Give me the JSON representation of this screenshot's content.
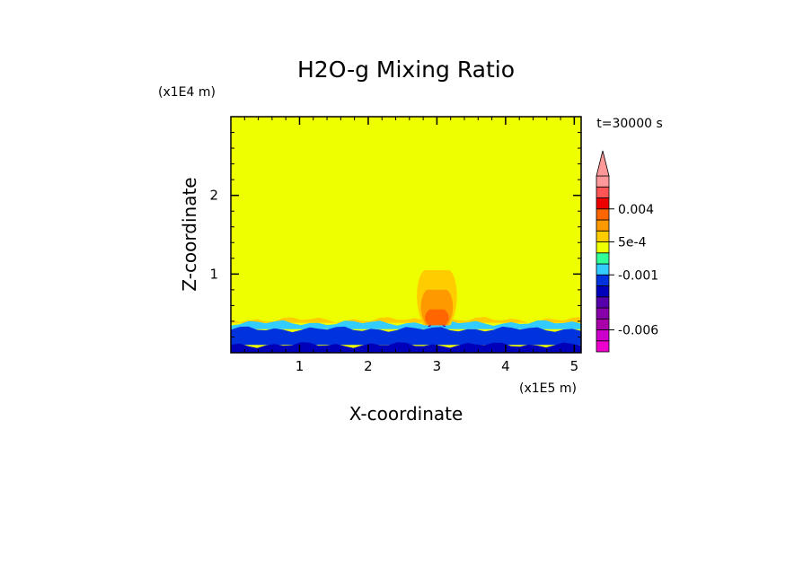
{
  "chart_data": {
    "type": "heatmap",
    "title": "H2O-g Mixing Ratio",
    "xlabel": "X-coordinate",
    "ylabel": "Z-coordinate",
    "x_unit": "(x1E5 m)",
    "y_unit": "(x1E4 m)",
    "time_label": "t=30000 s",
    "xlim": [
      0,
      5.1
    ],
    "ylim": [
      0,
      3.0
    ],
    "x_ticks": [
      1,
      2,
      3,
      4,
      5
    ],
    "y_ticks": [
      1,
      2
    ],
    "x_tick_labels": [
      "1",
      "2",
      "3",
      "4",
      "5"
    ],
    "y_tick_labels": [
      "1",
      "2"
    ],
    "background_value": 0,
    "colorbar": {
      "levels": [
        -0.008,
        -0.007,
        -0.006,
        -0.005,
        -0.004,
        -0.003,
        -0.002,
        -0.001,
        -0.0005,
        0,
        0.0005,
        0.001,
        0.002,
        0.004,
        0.006,
        0.008
      ],
      "colors": [
        "#ee00cc",
        "#cc00cc",
        "#aa00aa",
        "#8800aa",
        "#5500aa",
        "#0000bb",
        "#0033dd",
        "#33ccff",
        "#33ff99",
        "#eeff00",
        "#ffcc00",
        "#ff9900",
        "#ff6600",
        "#ee0000",
        "#ff5555",
        "#ff9999"
      ],
      "extend_color": "#ff9999",
      "labels": [
        "0.004",
        "5e-4",
        "-0.001",
        "-0.006"
      ],
      "label_values": [
        0.004,
        0.0005,
        -0.001,
        -0.006
      ]
    },
    "features": [
      {
        "type": "layer",
        "x": [
          0,
          5.1
        ],
        "z": [
          0.38,
          0.42
        ],
        "value": 0.0008
      },
      {
        "type": "layer",
        "x": [
          0,
          5.1
        ],
        "z": [
          0.3,
          0.38
        ],
        "value": -0.0008
      },
      {
        "type": "layer",
        "x": [
          0,
          5.1
        ],
        "z": [
          0.1,
          0.3
        ],
        "value": -0.0015
      },
      {
        "type": "layer",
        "x": [
          0,
          5.1
        ],
        "z": [
          0.0,
          0.1
        ],
        "value": -0.003
      },
      {
        "type": "plume",
        "x_center": 3.0,
        "z_top": 1.05,
        "value": 0.0007
      },
      {
        "type": "plume",
        "x_center": 3.0,
        "z_top": 0.8,
        "value": 0.0015
      },
      {
        "type": "plume",
        "x_center": 3.0,
        "z_top": 0.55,
        "value": 0.003
      },
      {
        "type": "plume",
        "x_center": 3.0,
        "z_top": 0.35,
        "value": -0.004
      }
    ]
  }
}
